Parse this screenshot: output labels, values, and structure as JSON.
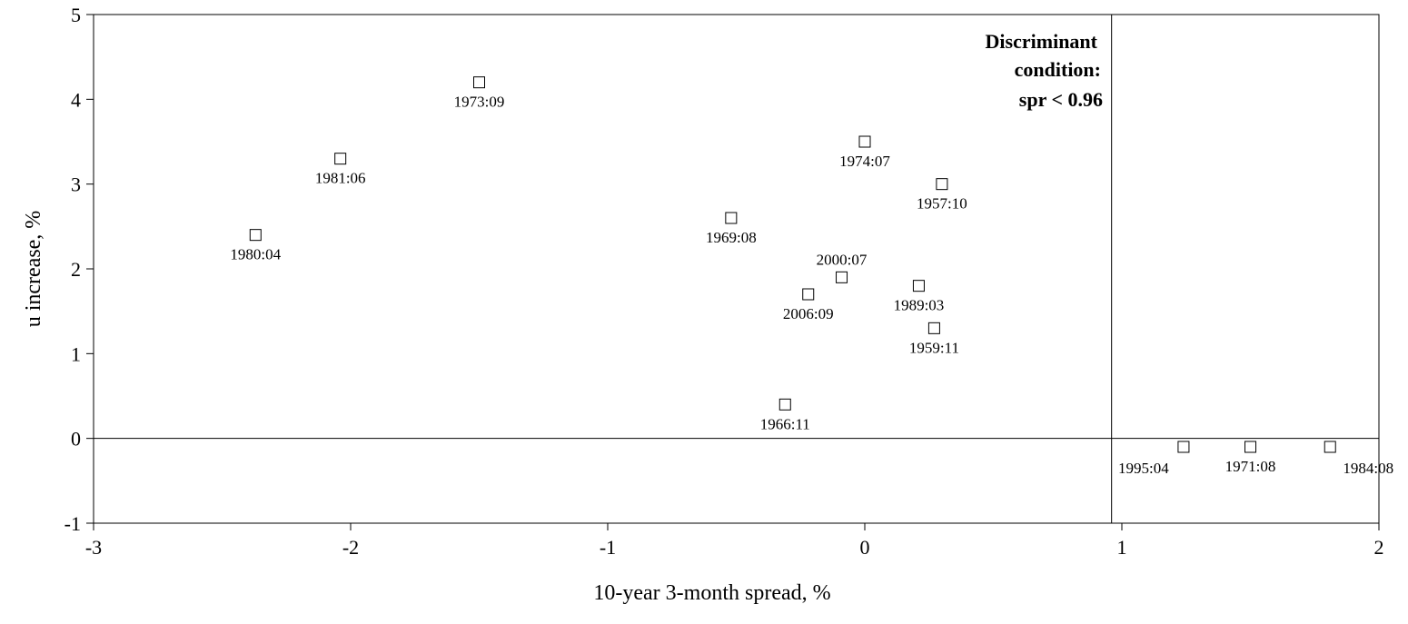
{
  "chart_data": {
    "type": "scatter",
    "title": "",
    "xlabel": "10-year 3-month spread, %",
    "ylabel": "u increase, %",
    "xlim": [
      -3,
      2
    ],
    "ylim": [
      -1,
      5
    ],
    "x_ticks": [
      "-3",
      "-2",
      "-1",
      "0",
      "1",
      "2"
    ],
    "y_ticks": [
      "-1",
      "0",
      "1",
      "2",
      "3",
      "4",
      "5"
    ],
    "grid": false,
    "threshold_x": 0.96,
    "annotation": {
      "line1": "Discriminant",
      "line2": "condition:",
      "line3": "spr <  0.96"
    },
    "points": [
      {
        "label": "1973:09",
        "x": -1.5,
        "y": 4.2,
        "label_pos": "below"
      },
      {
        "label": "1981:06",
        "x": -2.04,
        "y": 3.3,
        "label_pos": "below"
      },
      {
        "label": "1980:04",
        "x": -2.37,
        "y": 2.4,
        "label_pos": "below"
      },
      {
        "label": "1974:07",
        "x": 0.0,
        "y": 3.5,
        "label_pos": "below"
      },
      {
        "label": "1957:10",
        "x": 0.3,
        "y": 3.0,
        "label_pos": "below"
      },
      {
        "label": "1969:08",
        "x": -0.52,
        "y": 2.6,
        "label_pos": "below"
      },
      {
        "label": "2000:07",
        "x": -0.09,
        "y": 1.9,
        "label_pos": "above"
      },
      {
        "label": "2006:09",
        "x": -0.22,
        "y": 1.7,
        "label_pos": "below"
      },
      {
        "label": "1989:03",
        "x": 0.21,
        "y": 1.8,
        "label_pos": "below"
      },
      {
        "label": "1959:11",
        "x": 0.27,
        "y": 1.3,
        "label_pos": "below"
      },
      {
        "label": "1966:11",
        "x": -0.31,
        "y": 0.4,
        "label_pos": "below"
      },
      {
        "label": "1995:04",
        "x": 1.24,
        "y": -0.1,
        "label_pos": "below-left"
      },
      {
        "label": "1971:08",
        "x": 1.5,
        "y": -0.1,
        "label_pos": "below"
      },
      {
        "label": "1984:08",
        "x": 1.81,
        "y": -0.1,
        "label_pos": "below-right"
      }
    ]
  }
}
